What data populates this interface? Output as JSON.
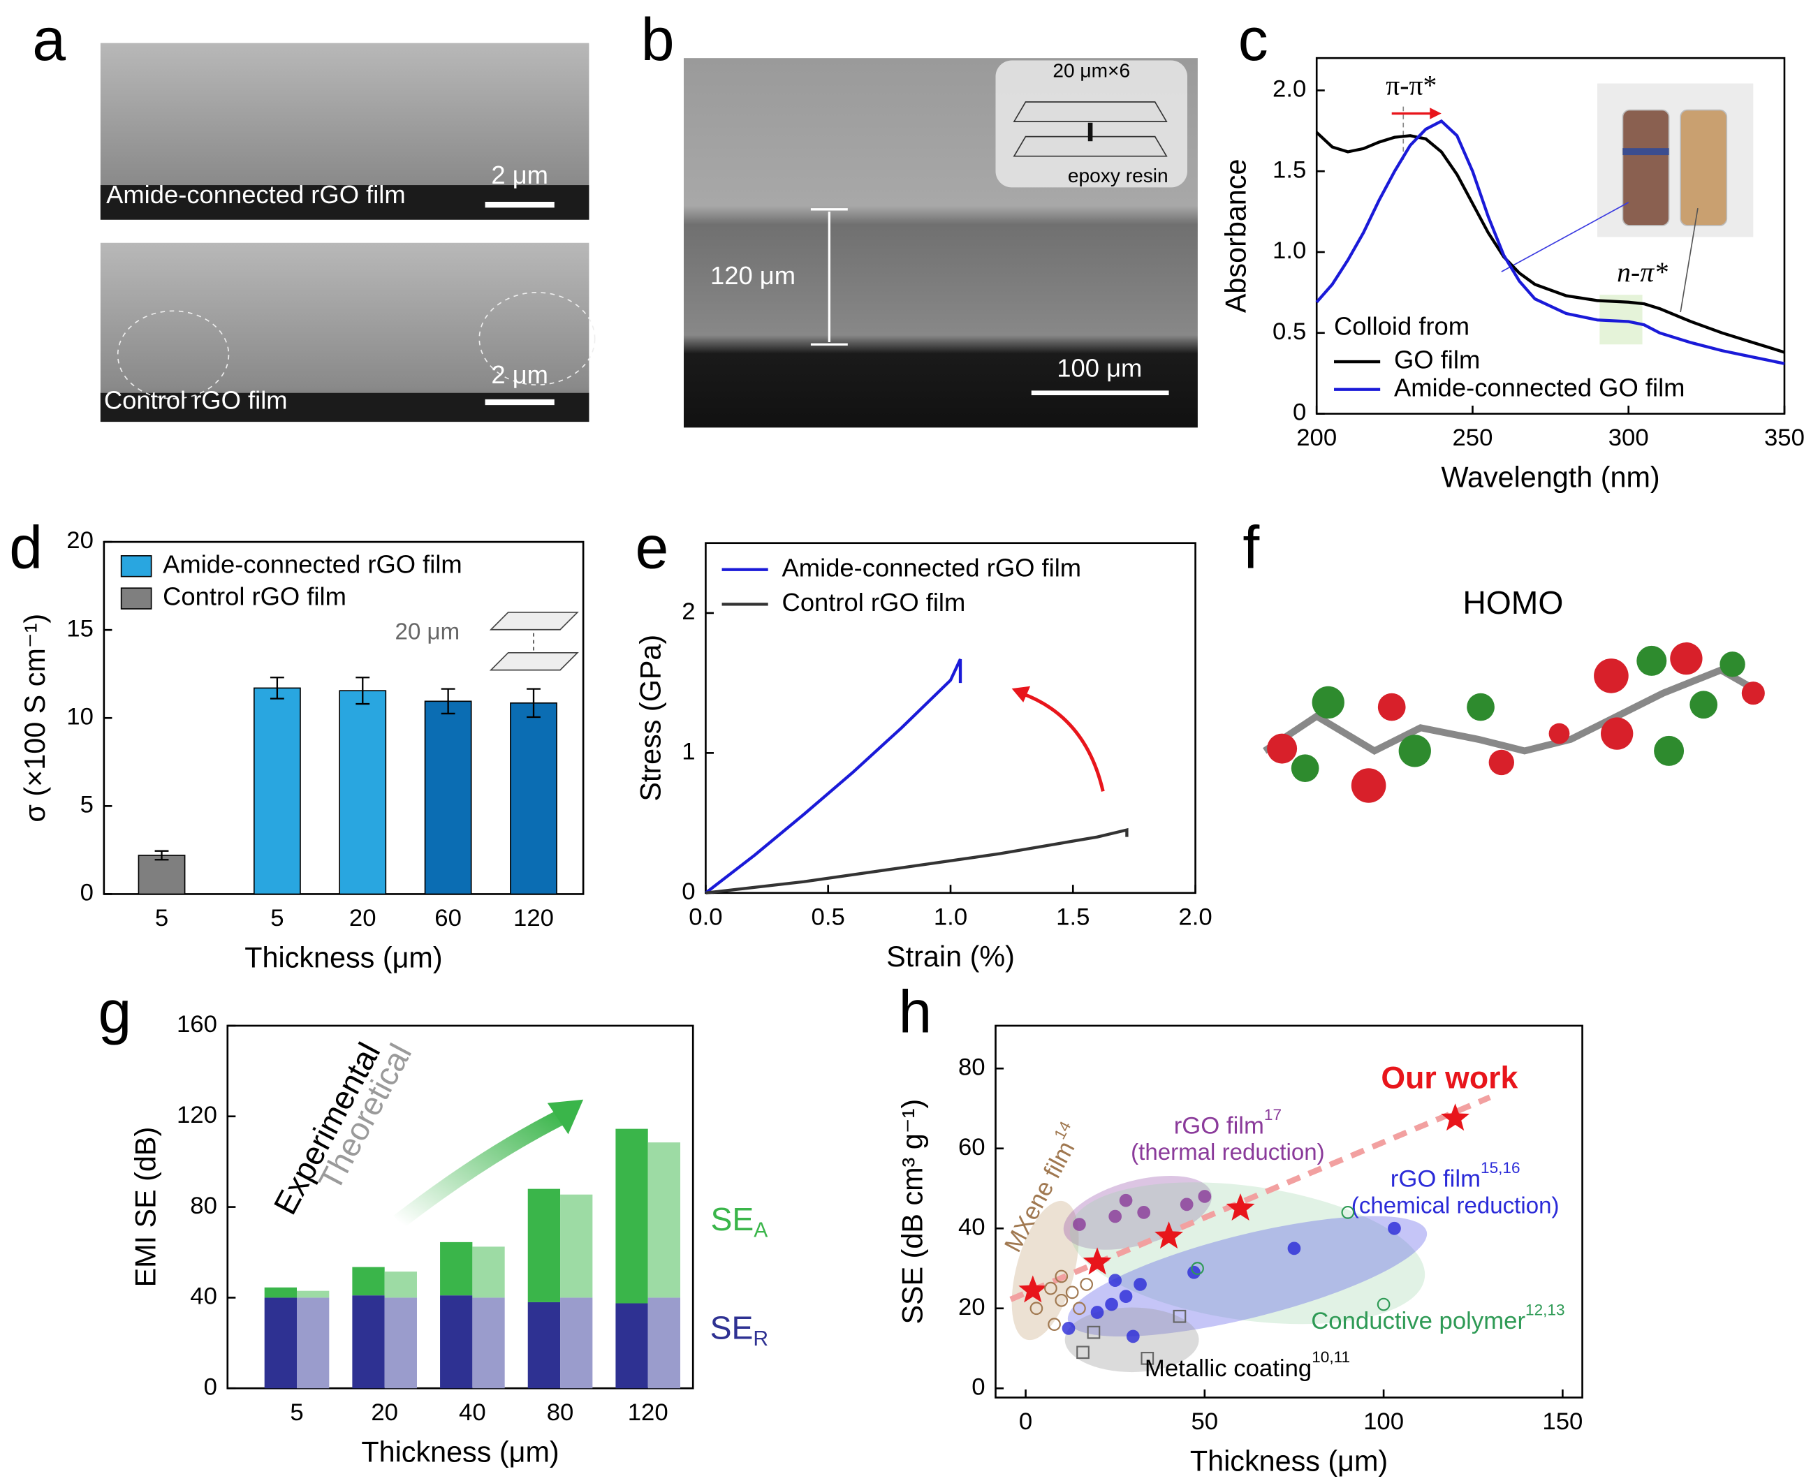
{
  "chart_data": [
    {
      "type": "line",
      "panel": "c",
      "xlabel": "Wavelength (nm)",
      "ylabel": "Absorbance",
      "x": [
        200,
        205,
        210,
        215,
        220,
        225,
        230,
        235,
        240,
        245,
        250,
        255,
        260,
        265,
        270,
        280,
        290,
        300,
        305,
        310,
        320,
        330,
        340,
        350
      ],
      "series": [
        {
          "name": "GO film",
          "color": "#000000",
          "values": [
            1.74,
            1.65,
            1.62,
            1.64,
            1.68,
            1.71,
            1.72,
            1.7,
            1.62,
            1.48,
            1.3,
            1.12,
            0.97,
            0.87,
            0.8,
            0.73,
            0.7,
            0.69,
            0.68,
            0.65,
            0.57,
            0.5,
            0.44,
            0.38
          ]
        },
        {
          "name": "Amide-connected GO film",
          "color": "#1a1ad8",
          "values": [
            0.69,
            0.8,
            0.95,
            1.12,
            1.32,
            1.5,
            1.66,
            1.76,
            1.81,
            1.72,
            1.5,
            1.22,
            0.98,
            0.82,
            0.71,
            0.62,
            0.58,
            0.57,
            0.55,
            0.5,
            0.44,
            0.39,
            0.35,
            0.31
          ]
        }
      ],
      "legend_title": "Colloid from",
      "annotations": [
        "π-π*",
        "n-π*"
      ],
      "xlim": [
        200,
        350
      ],
      "xticks": [
        200,
        250,
        300,
        350
      ],
      "ylim": [
        0,
        2.2
      ],
      "yticks": [
        0,
        0.5,
        {
          "value": 1,
          "label": "1.0"
        },
        1.5,
        {
          "value": 2,
          "label": "2.0"
        }
      ]
    },
    {
      "type": "bar",
      "panel": "d",
      "xlabel": "Thickness (μm)",
      "ylabel": "σ (×100 S cm⁻¹)",
      "categories": [
        "5",
        "5",
        "20",
        "60",
        "120"
      ],
      "series": [
        {
          "name": "Amide-connected rGO film",
          "color": "#29a6e0",
          "colors": [
            null,
            "#29a6e0",
            "#29a6e0",
            "#0b6db3",
            "#0b6db3"
          ],
          "values": [
            null,
            11.7,
            11.55,
            10.95,
            10.85
          ],
          "errors": [
            null,
            0.6,
            0.75,
            0.7,
            0.8
          ]
        },
        {
          "name": "Control rGO film",
          "color": "#7f7f7f",
          "values": [
            2.2,
            null,
            null,
            null,
            null
          ],
          "errors": [
            0.25,
            null,
            null,
            null,
            null
          ]
        }
      ],
      "annotations": [
        "20 μm"
      ],
      "ylim": [
        0,
        20
      ],
      "yticks": [
        0,
        5,
        10,
        15,
        20
      ]
    },
    {
      "type": "line",
      "panel": "e",
      "xlabel": "Strain (%)",
      "ylabel": "Stress (GPa)",
      "series": [
        {
          "name": "Amide-connected rGO film",
          "color": "#1a1ad8",
          "x": [
            0,
            0.2,
            0.4,
            0.6,
            0.8,
            1.0,
            1.04,
            1.04
          ],
          "values": [
            0,
            0.27,
            0.56,
            0.86,
            1.18,
            1.52,
            1.67,
            1.5
          ]
        },
        {
          "name": "Control rGO film",
          "color": "#333333",
          "x": [
            0,
            0.4,
            0.8,
            1.2,
            1.6,
            1.72,
            1.72
          ],
          "values": [
            0,
            0.08,
            0.18,
            0.28,
            0.4,
            0.45,
            0.4
          ]
        }
      ],
      "xlim": [
        0,
        2
      ],
      "xticks": [
        {
          "value": 0,
          "label": "0.0"
        },
        0.5,
        {
          "value": 1,
          "label": "1.0"
        },
        1.5,
        {
          "value": 2,
          "label": "2.0"
        }
      ],
      "ylim": [
        0,
        2.5
      ],
      "yticks": [
        0,
        1,
        2
      ]
    },
    {
      "type": "stacked_bar",
      "panel": "g",
      "xlabel": "Thickness (μm)",
      "ylabel": "EMI SE (dB)",
      "categories": [
        "5",
        "20",
        "40",
        "80",
        "120"
      ],
      "groups": [
        "Experimental",
        "Theoretical"
      ],
      "series": [
        {
          "name": [
            "SE",
            "R"
          ],
          "colors": [
            "#2e3192",
            "#9a9ccc"
          ],
          "values": [
            [
              40,
              41,
              41,
              38,
              37.5
            ],
            [
              40,
              40,
              40,
              40,
              40
            ]
          ]
        },
        {
          "name": [
            "SE",
            "A"
          ],
          "colors": [
            "#3ab54a",
            "#9ddba4"
          ],
          "values": [
            [
              4.5,
              12.5,
              23.5,
              50,
              77
            ],
            [
              3,
              11.5,
              22.5,
              45.5,
              68.5
            ]
          ]
        }
      ],
      "ylim": [
        0,
        160
      ],
      "yticks": [
        0,
        40,
        80,
        120,
        160
      ]
    },
    {
      "type": "scatter",
      "panel": "h",
      "xlabel": "Thickness (μm)",
      "ylabel": "SSE (dB cm³ g⁻¹)",
      "series": [
        {
          "name": "Our work",
          "color": "#e8151b",
          "marker": "star",
          "x": [
            2,
            20,
            40,
            60,
            120
          ],
          "values": [
            24.5,
            31.5,
            38,
            45,
            67.5
          ]
        },
        {
          "name": [
            "MXene film",
            "14"
          ],
          "color": "#a07850",
          "marker": "open-circle",
          "x": [
            3,
            8,
            10,
            13,
            10,
            17,
            15,
            7
          ],
          "values": [
            20,
            16,
            22,
            24,
            28,
            26,
            20,
            25
          ]
        },
        {
          "name": [
            "rGO film",
            "17"
          ],
          "note": "(thermal reduction)",
          "color": "#8a3a9a",
          "marker": "dot",
          "x": [
            15,
            25,
            28,
            33,
            45,
            50
          ],
          "values": [
            41,
            43,
            47,
            44,
            46,
            48
          ]
        },
        {
          "name": [
            "rGO film",
            "15,16"
          ],
          "note": "(chemical reduction)",
          "color": "#2a2ad8",
          "marker": "dot",
          "x": [
            12,
            20,
            24,
            28,
            32,
            25,
            30,
            47,
            75,
            103
          ],
          "values": [
            15,
            19,
            21,
            23,
            26,
            27,
            13,
            29,
            35,
            40
          ]
        },
        {
          "name": [
            "Conductive polymer",
            "12,13"
          ],
          "color": "#2e9a55",
          "marker": "open-circle",
          "x": [
            48,
            90,
            100
          ],
          "values": [
            30,
            44,
            21
          ]
        },
        {
          "name": [
            "Metallic coating",
            "10,11"
          ],
          "color": "#666666",
          "marker": "open-square",
          "x": [
            16,
            19,
            34,
            43
          ],
          "values": [
            9,
            14,
            7.5,
            18
          ]
        }
      ],
      "xlim": [
        -8.4,
        155.5
      ],
      "xticks": [
        0,
        50,
        100,
        150
      ],
      "ylim": [
        -2.3,
        90.7
      ],
      "yticks": [
        0,
        20,
        40,
        60,
        80
      ]
    }
  ],
  "images": {
    "a": {
      "label": "a",
      "texts": [
        "Amide-connected rGO film",
        "2 μm",
        "Control rGO film",
        "2 μm"
      ]
    },
    "b": {
      "label": "b",
      "texts": [
        "20 μm×6",
        "epoxy resin",
        "120 μm",
        "100 μm"
      ]
    },
    "f": {
      "label": "f",
      "title": "HOMO"
    }
  }
}
